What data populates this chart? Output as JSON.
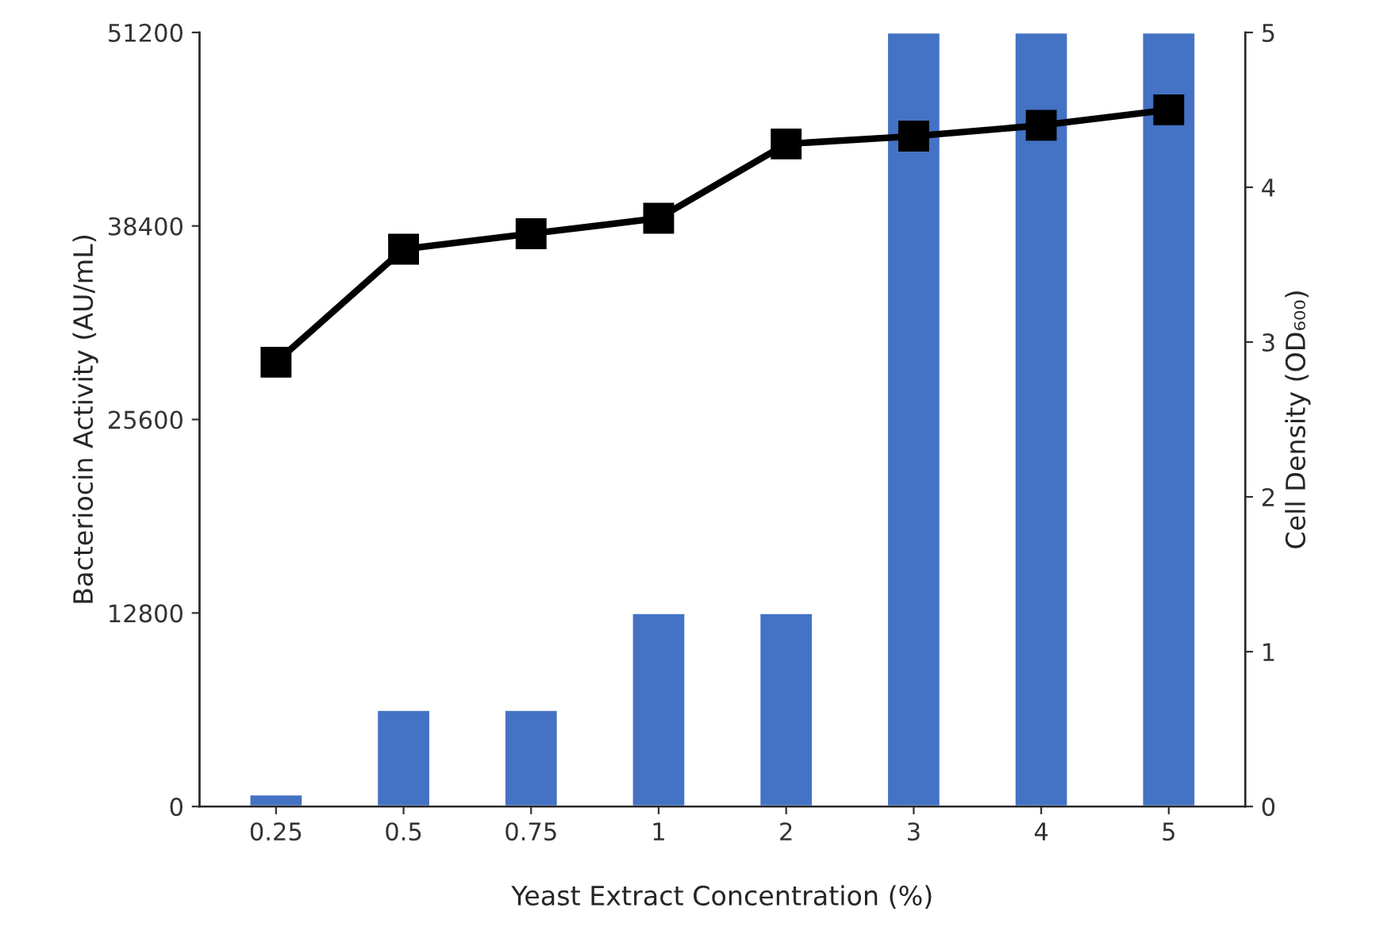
{
  "chart_data": {
    "type": "bar",
    "xlabel": "Yeast Extract Concentration (%)",
    "ylabel": "Bacteriocin Activity (AU/mL)",
    "y2label": "Cell Density (OD₆₀₀)",
    "categories": [
      "0.25",
      "0.5",
      "0.75",
      "1",
      "2",
      "3",
      "4",
      "5"
    ],
    "series": [
      {
        "color": "#4472c4",
        "values": [
          800,
          6400,
          6400,
          12800,
          12800,
          51200,
          51200,
          51200
        ]
      },
      {
        "type": "line",
        "axis": "y2",
        "color": "#000000",
        "marker": "square",
        "line_style": "solid",
        "values": [
          2.87,
          3.6,
          3.7,
          3.8,
          4.28,
          4.33,
          4.4,
          4.5
        ]
      }
    ],
    "ylim": [
      0,
      51200
    ],
    "yticks": [
      0,
      12800,
      25600,
      38400,
      51200
    ],
    "y2lim": [
      0,
      5
    ],
    "y2ticks": [
      0,
      1,
      2,
      3,
      4,
      5
    ],
    "grid": false
  }
}
